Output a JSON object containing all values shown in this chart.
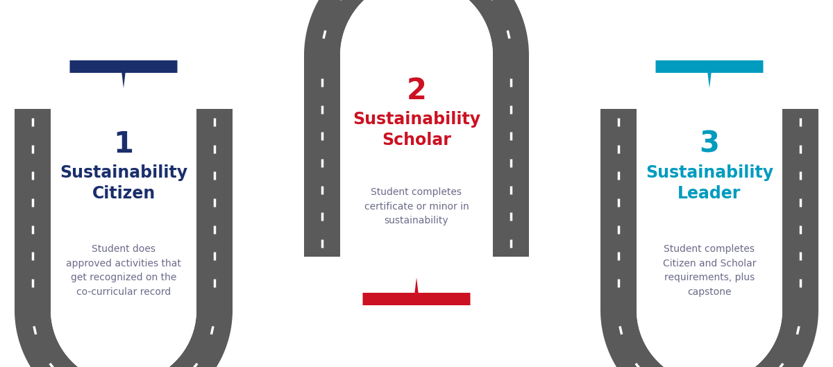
{
  "bg_color": "#ffffff",
  "road_color": "#5a5a5a",
  "dash_color": "#ffffff",
  "tiers": [
    {
      "number": "1",
      "title": "Sustainability\nCitizen",
      "description": "Student does\napproved activities that\nget recognized on the\nco-curricular record",
      "number_color": "#1a2e6c",
      "title_color": "#1a2e6c",
      "desc_color": "#6a6a8a",
      "tab_color": "#1a2e6c"
    },
    {
      "number": "2",
      "title": "Sustainability\nScholar",
      "description": "Student completes\ncertificate or minor in\nsustainability",
      "number_color": "#cc1122",
      "title_color": "#cc1122",
      "desc_color": "#6a6a8a",
      "tab_color": "#cc1122"
    },
    {
      "number": "3",
      "title": "Sustainability\nLeader",
      "description": "Student completes\nCitizen and Scholar\nrequirements, plus\ncapstone",
      "number_color": "#009bbf",
      "title_color": "#009bbf",
      "desc_color": "#6a6a8a",
      "tab_color": "#009bbf"
    }
  ]
}
